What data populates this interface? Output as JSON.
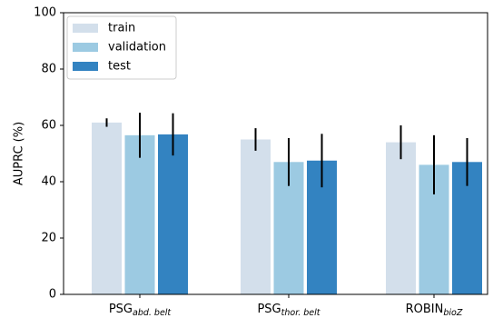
{
  "chart_data": {
    "type": "bar",
    "ylabel": "AUPRC (%)",
    "xlabel": "",
    "ylim": [
      0,
      100
    ],
    "yticks": [
      0,
      20,
      40,
      60,
      80,
      100
    ],
    "grid": false,
    "legend_position": "top-left",
    "categories": [
      {
        "main": "PSG",
        "sub": "abd. belt"
      },
      {
        "main": "PSG",
        "sub": "thor. belt"
      },
      {
        "main": "ROBIN",
        "sub": "bioZ"
      }
    ],
    "series": [
      {
        "name": "train",
        "color": "#d3dfeb",
        "values": [
          61,
          55,
          54
        ],
        "errors": [
          1.5,
          4,
          6
        ]
      },
      {
        "name": "validation",
        "color": "#9ccae2",
        "values": [
          56.5,
          47,
          46
        ],
        "errors": [
          8,
          8.5,
          10.5
        ]
      },
      {
        "name": "test",
        "color": "#3383c1",
        "values": [
          56.8,
          47.5,
          47
        ],
        "errors": [
          7.5,
          9.5,
          8.5
        ]
      }
    ]
  }
}
